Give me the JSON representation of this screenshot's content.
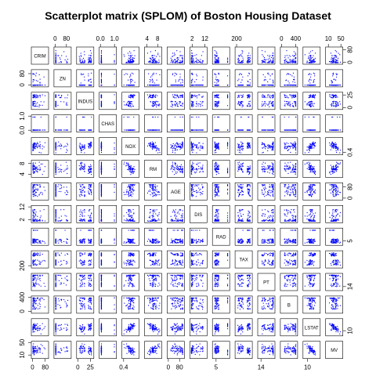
{
  "chart_data": {
    "type": "scatter",
    "title": "Scatterplot matrix (SPLOM) of Boston Housing Dataset",
    "point_color": "#0000ff",
    "variables": [
      {
        "name": "CRIM",
        "range": [
          0,
          89
        ],
        "ticks": [
          "0",
          "80"
        ],
        "tick_values": [
          0,
          80
        ],
        "shape": "skew"
      },
      {
        "name": "ZN",
        "range": [
          0,
          100
        ],
        "ticks": [
          "0",
          "80"
        ],
        "tick_values": [
          0,
          80
        ],
        "shape": "zero"
      },
      {
        "name": "INDUS",
        "range": [
          0,
          28
        ],
        "ticks": [
          "0",
          "25"
        ],
        "tick_values": [
          0,
          25
        ],
        "shape": "bimodal"
      },
      {
        "name": "CHAS",
        "range": [
          0,
          1
        ],
        "ticks": [
          "0.0",
          "1.0"
        ],
        "tick_values": [
          0,
          1
        ],
        "shape": "binary"
      },
      {
        "name": "NOX",
        "range": [
          0.38,
          0.87
        ],
        "ticks": [
          "0.4"
        ],
        "tick_values": [
          0.4
        ],
        "shape": "normal"
      },
      {
        "name": "RM",
        "range": [
          3.5,
          8.8
        ],
        "ticks": [
          "4",
          "8"
        ],
        "tick_values": [
          4,
          8
        ],
        "shape": "normal"
      },
      {
        "name": "AGE",
        "range": [
          2,
          100
        ],
        "ticks": [
          "0",
          "80"
        ],
        "tick_values": [
          0,
          80
        ],
        "shape": "high"
      },
      {
        "name": "DIS",
        "range": [
          1.1,
          12.2
        ],
        "ticks": [
          "2",
          "12"
        ],
        "tick_values": [
          2,
          12
        ],
        "shape": "skew"
      },
      {
        "name": "RAD",
        "range": [
          1,
          24
        ],
        "ticks": [
          "5"
        ],
        "tick_values": [
          5
        ],
        "shape": "rad"
      },
      {
        "name": "TAX",
        "range": [
          187,
          711
        ],
        "ticks": [
          "200"
        ],
        "tick_values": [
          200
        ],
        "shape": "bimodal"
      },
      {
        "name": "PT",
        "range": [
          12.6,
          22
        ],
        "ticks": [
          "14"
        ],
        "tick_values": [
          14
        ],
        "shape": "high"
      },
      {
        "name": "B",
        "range": [
          0,
          397
        ],
        "ticks": [
          "0",
          "400"
        ],
        "tick_values": [
          0,
          400
        ],
        "shape": "high"
      },
      {
        "name": "LSTAT",
        "range": [
          1.7,
          38
        ],
        "ticks": [
          "10"
        ],
        "tick_values": [
          10
        ],
        "shape": "normal"
      },
      {
        "name": "MV",
        "range": [
          5,
          50
        ],
        "ticks": [
          "10",
          "50"
        ],
        "tick_values": [
          10,
          50
        ],
        "shape": "normal"
      }
    ]
  }
}
